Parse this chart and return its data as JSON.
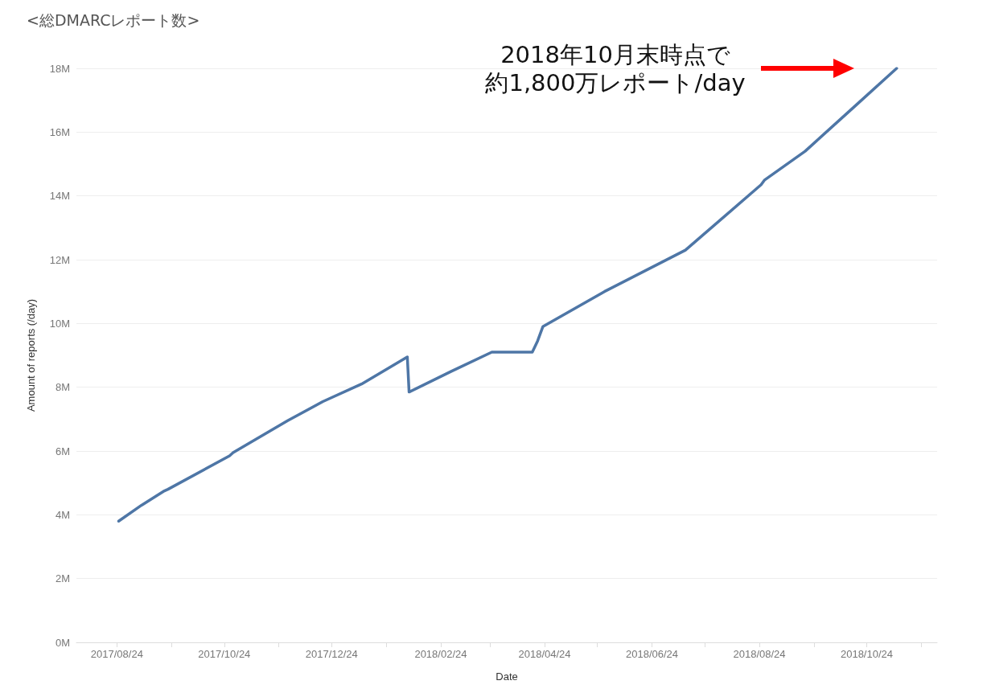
{
  "chart_data": {
    "type": "line",
    "title": "<総DMARCレポート数>",
    "xlabel": "Date",
    "ylabel": "Amount of reports (/day)",
    "annotations": [
      "2018年10月末時点で",
      "約1,800万レポート/day"
    ],
    "x": [
      "2017-08-25",
      "2017-09-07",
      "2017-09-20",
      "2017-09-22",
      "2017-10-27",
      "2017-10-29",
      "2017-11-29",
      "2017-12-19",
      "2018-01-10",
      "2018-02-05",
      "2018-02-06",
      "2018-03-02",
      "2018-03-25",
      "2018-04-17",
      "2018-04-20",
      "2018-04-23",
      "2018-05-28",
      "2018-07-13",
      "2018-08-25",
      "2018-08-27",
      "2018-09-19",
      "2018-10-17",
      "2018-11-10"
    ],
    "series": [
      {
        "color": "#4e76a6",
        "values": [
          3.8,
          4.3,
          4.75,
          4.8,
          5.85,
          5.95,
          6.95,
          7.55,
          8.1,
          8.95,
          7.85,
          8.5,
          9.1,
          9.1,
          9.45,
          9.9,
          11.0,
          12.3,
          14.35,
          14.5,
          15.4,
          16.8,
          18.0
        ]
      }
    ],
    "xlim": [
      "2017-08-01",
      "2018-12-03"
    ],
    "xticks": [
      {
        "value": "2017-08-24",
        "label": "2017/08/24"
      },
      {
        "value": "2017-09-24",
        "label": null
      },
      {
        "value": "2017-10-24",
        "label": "2017/10/24"
      },
      {
        "value": "2017-11-24",
        "label": null
      },
      {
        "value": "2017-12-24",
        "label": "2017/12/24"
      },
      {
        "value": "2018-01-24",
        "label": null
      },
      {
        "value": "2018-02-24",
        "label": "2018/02/24"
      },
      {
        "value": "2018-03-24",
        "label": null
      },
      {
        "value": "2018-04-24",
        "label": "2018/04/24"
      },
      {
        "value": "2018-05-24",
        "label": null
      },
      {
        "value": "2018-06-24",
        "label": "2018/06/24"
      },
      {
        "value": "2018-07-24",
        "label": null
      },
      {
        "value": "2018-08-24",
        "label": "2018/08/24"
      },
      {
        "value": "2018-09-24",
        "label": null
      },
      {
        "value": "2018-10-24",
        "label": "2018/10/24"
      },
      {
        "value": "2018-11-24",
        "label": null
      }
    ],
    "ylim": [
      0,
      18
    ],
    "yticks": [
      {
        "value": 0,
        "label": "0M"
      },
      {
        "value": 2,
        "label": "2M"
      },
      {
        "value": 4,
        "label": "4M"
      },
      {
        "value": 6,
        "label": "6M"
      },
      {
        "value": 8,
        "label": "8M"
      },
      {
        "value": 10,
        "label": "10M"
      },
      {
        "value": 12,
        "label": "12M"
      },
      {
        "value": 14,
        "label": "14M"
      },
      {
        "value": 16,
        "label": "16M"
      },
      {
        "value": 18,
        "label": "18M"
      }
    ],
    "grid": "y",
    "marker": "none",
    "line_style": "solid"
  }
}
